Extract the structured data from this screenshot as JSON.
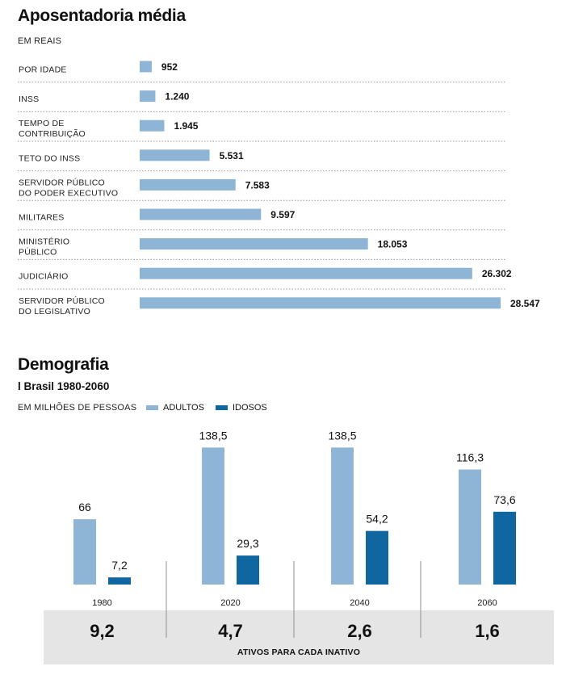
{
  "chart_data": [
    {
      "type": "bar",
      "orientation": "horizontal",
      "title": "Aposentadoria média",
      "unit_label": "EM REAIS",
      "categories": [
        [
          "POR IDADE"
        ],
        [
          "INSS"
        ],
        [
          "TEMPO DE",
          "CONTRIBUIÇÃO"
        ],
        [
          "TETO DO INSS"
        ],
        [
          "SERVIDOR PÚBLICO",
          "DO PODER EXECUTIVO"
        ],
        [
          "MILITARES"
        ],
        [
          "MINISTÉRIO",
          "PÚBLICO"
        ],
        [
          "JUDICIÁRIO"
        ],
        [
          "SERVIDOR PÚBLICO",
          "DO LEGISLATIVO"
        ]
      ],
      "values": [
        952,
        1240,
        1945,
        5531,
        7583,
        9597,
        18053,
        26302,
        28547
      ],
      "value_labels": [
        "952",
        "1.240",
        "1.945",
        "5.531",
        "7.583",
        "9.597",
        "18.053",
        "26.302",
        "28.547"
      ],
      "bar_color": "#8eb4d6",
      "grid": false
    },
    {
      "type": "bar",
      "orientation": "vertical",
      "title": "Demografia",
      "subtitle": "l Brasil 1980-2060",
      "unit_label": "EM MILHÕES DE PESSOAS",
      "categories": [
        "1980",
        "2020",
        "2040",
        "2060"
      ],
      "series": [
        {
          "name": "ADULTOS",
          "color": "#8eb4d6",
          "values": [
            66,
            138.5,
            138.5,
            116.3
          ],
          "labels": [
            "66",
            "138,5",
            "138,5",
            "116,3"
          ]
        },
        {
          "name": "IDOSOS",
          "color": "#0f66a0",
          "values": [
            7.2,
            29.3,
            54.2,
            73.6
          ],
          "labels": [
            "7,2",
            "29,3",
            "54,2",
            "73,6"
          ]
        }
      ],
      "ratio": {
        "values": [
          "9,2",
          "4,7",
          "2,6",
          "1,6"
        ],
        "caption": "ATIVOS PARA CADA INATIVO",
        "background": "#e5e5e5"
      },
      "legend_position": "top"
    }
  ]
}
